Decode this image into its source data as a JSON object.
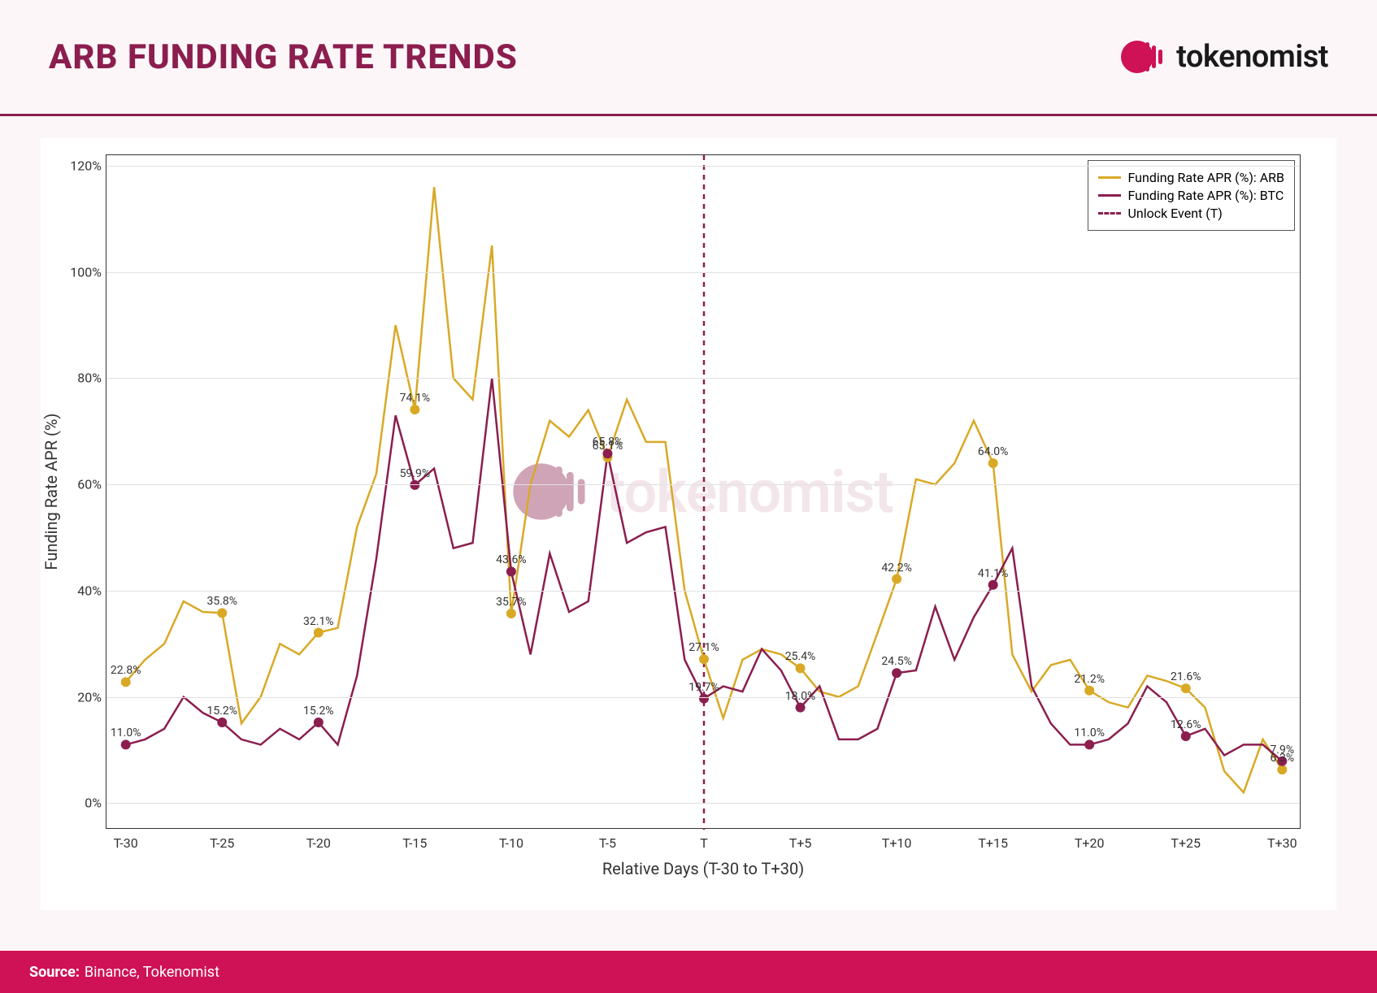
{
  "header": {
    "title": "ARB FUNDING RATE TRENDS",
    "brand_name": "tokenomist"
  },
  "chart": {
    "type": "line",
    "background_color": "#ffffff",
    "grid_color": "#e0e0e0",
    "border_color": "#333333",
    "xlabel": "Relative Days (T-30 to T+30)",
    "ylabel": "Funding Rate APR (%)",
    "label_fontsize": 20,
    "tick_fontsize": 16,
    "ylim": [
      -5,
      122
    ],
    "yticks": [
      0,
      20,
      40,
      60,
      80,
      100,
      120
    ],
    "ytick_labels": [
      "0%",
      "20%",
      "40%",
      "60%",
      "80%",
      "100%",
      "120%"
    ],
    "xlim": [
      -31,
      31
    ],
    "xticks": [
      -30,
      -25,
      -20,
      -15,
      -10,
      -5,
      0,
      5,
      10,
      15,
      20,
      25,
      30,
      31
    ],
    "xtick_labels": [
      "T-30",
      "T-25",
      "T-20",
      "T-15",
      "T-10",
      "T-5",
      "T",
      "T+5",
      "T+10",
      "T+15",
      "T+20",
      "T+25",
      "T+30",
      ""
    ],
    "unlock_line": {
      "x": 0,
      "color": "#8b1e4e",
      "dash": "6,6",
      "width": 2.5
    },
    "series": [
      {
        "name": "ARB",
        "color": "#d9a926",
        "line_width": 2.5,
        "marker_color": "#d9a926",
        "marker_radius": 6,
        "x": [
          -30,
          -29,
          -28,
          -27,
          -26,
          -25,
          -24,
          -23,
          -22,
          -21,
          -20,
          -19,
          -18,
          -17,
          -16,
          -15,
          -14,
          -13,
          -12,
          -11,
          -10,
          -9,
          -8,
          -7,
          -6,
          -5,
          -4,
          -3,
          -2,
          -1,
          0,
          1,
          2,
          3,
          4,
          5,
          6,
          7,
          8,
          9,
          10,
          11,
          12,
          13,
          14,
          15,
          16,
          17,
          18,
          19,
          20,
          21,
          22,
          23,
          24,
          25,
          26,
          27,
          28,
          29,
          30
        ],
        "y": [
          22.8,
          27,
          30,
          38,
          36,
          35.8,
          15,
          20,
          30,
          28,
          32.1,
          33,
          52,
          62,
          90,
          74.1,
          116,
          80,
          76,
          105,
          35.7,
          60,
          72,
          69,
          74,
          65.1,
          76,
          68,
          68,
          40,
          27.1,
          16,
          27,
          29,
          28,
          25.4,
          21,
          20,
          22,
          32,
          42.2,
          61,
          60,
          64,
          72,
          64.0,
          28,
          21,
          26,
          27,
          21.2,
          19,
          18,
          24,
          23,
          21.6,
          18,
          6,
          2,
          12,
          6.3
        ]
      },
      {
        "name": "BTC",
        "color": "#8b1e4e",
        "line_width": 2.5,
        "marker_color": "#8b1e4e",
        "marker_radius": 6,
        "x": [
          -30,
          -29,
          -28,
          -27,
          -26,
          -25,
          -24,
          -23,
          -22,
          -21,
          -20,
          -19,
          -18,
          -17,
          -16,
          -15,
          -14,
          -13,
          -12,
          -11,
          -10,
          -9,
          -8,
          -7,
          -6,
          -5,
          -4,
          -3,
          -2,
          -1,
          0,
          1,
          2,
          3,
          4,
          5,
          6,
          7,
          8,
          9,
          10,
          11,
          12,
          13,
          14,
          15,
          16,
          17,
          18,
          19,
          20,
          21,
          22,
          23,
          24,
          25,
          26,
          27,
          28,
          29,
          30
        ],
        "y": [
          11.0,
          12,
          14,
          20,
          17,
          15.2,
          12,
          11,
          14,
          12,
          15.2,
          11,
          24,
          46,
          73,
          59.9,
          63,
          48,
          49,
          80,
          43.6,
          28,
          47,
          36,
          38,
          65.8,
          49,
          51,
          52,
          27,
          19.7,
          22,
          21,
          29,
          25,
          18.0,
          22,
          12,
          12,
          14,
          24.5,
          25,
          37,
          27,
          35,
          41.1,
          48,
          22,
          15,
          11,
          11.0,
          12,
          15,
          22,
          19,
          12.6,
          14,
          9,
          11,
          11,
          7.9
        ]
      }
    ],
    "labeled_points": {
      "ARB": [
        {
          "x": -30,
          "label": "22.8%"
        },
        {
          "x": -25,
          "label": "35.8%"
        },
        {
          "x": -20,
          "label": "32.1%"
        },
        {
          "x": -15,
          "label": "74.1%"
        },
        {
          "x": -10,
          "label": "35.7%"
        },
        {
          "x": -5,
          "label": "65.1%"
        },
        {
          "x": 0,
          "label": "27.1%"
        },
        {
          "x": 5,
          "label": "25.4%"
        },
        {
          "x": 10,
          "label": "42.2%"
        },
        {
          "x": 15,
          "label": "64.0%"
        },
        {
          "x": 20,
          "label": "21.2%"
        },
        {
          "x": 25,
          "label": "21.6%"
        },
        {
          "x": 30,
          "label": "6.3%"
        }
      ],
      "BTC": [
        {
          "x": -30,
          "label": "11.0%"
        },
        {
          "x": -25,
          "label": "15.2%"
        },
        {
          "x": -20,
          "label": "15.2%"
        },
        {
          "x": -15,
          "label": "59.9%"
        },
        {
          "x": -10,
          "label": "43.6%"
        },
        {
          "x": -5,
          "label": "65.8%"
        },
        {
          "x": 0,
          "label": "19.7%"
        },
        {
          "x": 5,
          "label": "18.0%"
        },
        {
          "x": 10,
          "label": "24.5%"
        },
        {
          "x": 15,
          "label": "41.1%"
        },
        {
          "x": 20,
          "label": "11.0%"
        },
        {
          "x": 25,
          "label": "12.6%"
        },
        {
          "x": 30,
          "label": "7.9%"
        }
      ]
    },
    "legend": {
      "items": [
        {
          "label": "Funding Rate APR (%): ARB",
          "color": "#d9a926",
          "style": "line"
        },
        {
          "label": "Funding Rate APR (%): BTC",
          "color": "#8b1e4e",
          "style": "line"
        },
        {
          "label": "Unlock Event (T)",
          "color": "#8b1e4e",
          "style": "dash"
        }
      ]
    },
    "watermark_text": "tokenomist"
  },
  "footer": {
    "source_label": "Source:",
    "source_text": "Binance, Tokenomist",
    "background_color": "#cf1155",
    "text_color": "#ffffff"
  },
  "colors": {
    "page_bg": "#fdf6f8",
    "title_color": "#8b1e4e",
    "divider_color": "#8b1e4e"
  }
}
